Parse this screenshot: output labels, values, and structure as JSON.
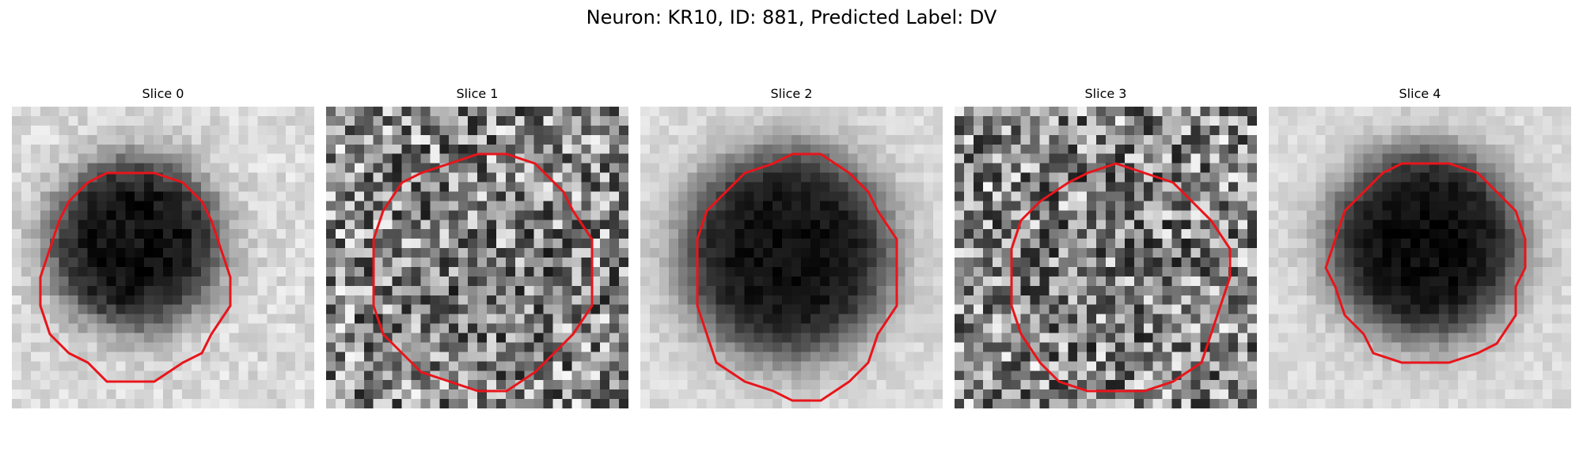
{
  "suptitle": "Neuron: KR10, ID: 881, Predicted Label: DV",
  "contour_color": "#e8151b",
  "panels": [
    {
      "title": "Slice 0",
      "style": "clear"
    },
    {
      "title": "Slice 1",
      "style": "noisy"
    },
    {
      "title": "Slice 2",
      "style": "clear"
    },
    {
      "title": "Slice 3",
      "style": "noisy"
    },
    {
      "title": "Slice 4",
      "style": "clear"
    }
  ]
}
